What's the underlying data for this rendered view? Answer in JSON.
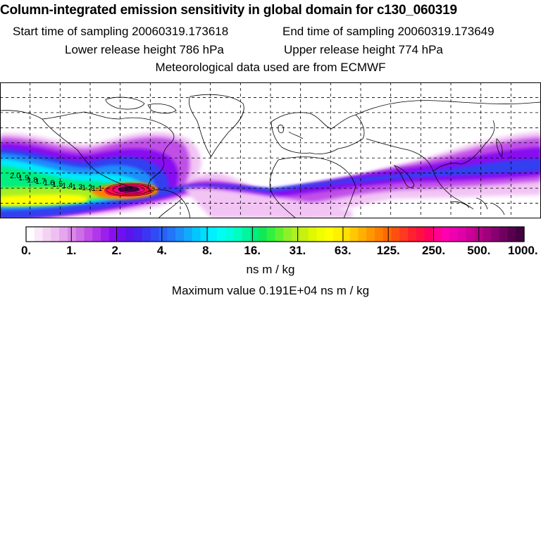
{
  "header": {
    "title": "Column-integrated emission sensitivity in global domain for c130_060319",
    "start_label": "Start time of sampling 20060319.173618",
    "end_label": "End time of sampling 20060319.173649",
    "lower_label": "Lower release height  786 hPa",
    "upper_label": "Upper release height  774 hPa",
    "met_label": "Meteorological data used are from ECMWF"
  },
  "colorbar": {
    "ticks": [
      "0.",
      "1.",
      "2.",
      "4.",
      "8.",
      "16.",
      "31.",
      "63.",
      "125.",
      "250.",
      "500.",
      "1000."
    ],
    "colors": [
      "#ffffff",
      "#fbe8fb",
      "#f4d2f4",
      "#efbff2",
      "#e5a6ee",
      "#d98ae9",
      "#cd6ee6",
      "#c050e8",
      "#b037ea",
      "#9d1fec",
      "#8810f0",
      "#6f10f0",
      "#5a15ec",
      "#4a22ee",
      "#3c36f2",
      "#304af4",
      "#2a60f6",
      "#2276f8",
      "#1e8efa",
      "#12aafc",
      "#00c8ff",
      "#00ddff",
      "#00f0ff",
      "#00fff0",
      "#00ffdd",
      "#00ffc0",
      "#00f5a0",
      "#00ee80",
      "#10e858",
      "#30f040",
      "#60f030",
      "#8ef028",
      "#b0f020",
      "#c8f010",
      "#e0f800",
      "#f0ff00",
      "#ffff00",
      "#fff000",
      "#ffe000",
      "#ffc800",
      "#ffb000",
      "#ff9800",
      "#ff8000",
      "#ff6a00",
      "#ff5010",
      "#ff3820",
      "#ff2030",
      "#ff1040",
      "#ff0060",
      "#ff0090",
      "#ff00b0",
      "#ee00b0",
      "#e000a8",
      "#cc0098",
      "#b8008a",
      "#a0007c",
      "#880070",
      "#700060",
      "#580050",
      "#440040"
    ],
    "unit": "ns m / kg",
    "max_label": "Maximum value  0.191E+04 ns m / kg"
  },
  "map": {
    "contour_labels": [
      "2.0",
      "1.9",
      "1.8",
      "1.7",
      "1.6",
      "1.5",
      "1.4",
      "1.3",
      "1.2",
      "1.1"
    ],
    "plume_colors": {
      "light": "#f2c4f4",
      "violet": "#c050e8",
      "purple": "#8810f0",
      "blue": "#3040f0",
      "skyblue": "#1e8efa",
      "cyan": "#00e8ff",
      "green": "#00ee80",
      "lime": "#a8f020",
      "yellow": "#ffff00",
      "orange": "#ff8000",
      "red": "#ff1040",
      "magenta": "#ff0090",
      "dark": "#440040"
    }
  }
}
